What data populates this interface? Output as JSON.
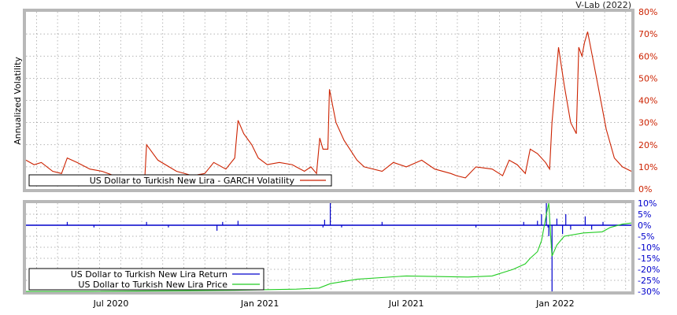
{
  "header": {
    "credit": "V-Lab (2022)"
  },
  "chart_data": [
    {
      "type": "line",
      "title": "",
      "ylabel": "Annualized Volatility",
      "ylim": [
        0,
        80
      ],
      "y_unit": "%",
      "y_ticks": [
        0,
        10,
        20,
        30,
        40,
        50,
        60,
        70,
        80
      ],
      "y_tick_labels": [
        "0%",
        "10%",
        "20%",
        "30%",
        "40%",
        "50%",
        "60%",
        "70%",
        "80%"
      ],
      "grid": true,
      "legend": "bottom-left",
      "x_range": [
        "2020-03-18",
        "2022-04-05"
      ],
      "series": [
        {
          "name": "US Dollar to Turkish New Lira - GARCH Volatility",
          "color": "#cc2200",
          "points": [
            [
              "2020-03-18",
              13
            ],
            [
              "2020-03-28",
              11
            ],
            [
              "2020-04-06",
              12
            ],
            [
              "2020-04-20",
              8
            ],
            [
              "2020-05-01",
              7
            ],
            [
              "2020-05-08",
              14
            ],
            [
              "2020-05-20",
              12
            ],
            [
              "2020-06-05",
              9
            ],
            [
              "2020-06-20",
              8
            ],
            [
              "2020-07-05",
              6
            ],
            [
              "2020-08-01",
              5
            ],
            [
              "2020-08-12",
              6
            ],
            [
              "2020-08-14",
              20
            ],
            [
              "2020-08-28",
              13
            ],
            [
              "2020-09-20",
              8
            ],
            [
              "2020-10-10",
              6
            ],
            [
              "2020-10-25",
              7
            ],
            [
              "2020-11-05",
              12
            ],
            [
              "2020-11-20",
              9
            ],
            [
              "2020-12-01",
              14
            ],
            [
              "2020-12-05",
              31
            ],
            [
              "2020-12-12",
              25
            ],
            [
              "2020-12-22",
              20
            ],
            [
              "2020-12-30",
              14
            ],
            [
              "2021-01-10",
              11
            ],
            [
              "2021-01-25",
              12
            ],
            [
              "2021-02-10",
              11
            ],
            [
              "2021-02-25",
              8
            ],
            [
              "2021-03-05",
              10
            ],
            [
              "2021-03-12",
              7
            ],
            [
              "2021-03-16",
              23
            ],
            [
              "2021-03-20",
              18
            ],
            [
              "2021-03-26",
              18
            ],
            [
              "2021-03-28",
              45
            ],
            [
              "2021-04-05",
              30
            ],
            [
              "2021-04-15",
              22
            ],
            [
              "2021-05-01",
              13
            ],
            [
              "2021-05-10",
              10
            ],
            [
              "2021-06-01",
              8
            ],
            [
              "2021-06-15",
              12
            ],
            [
              "2021-07-01",
              10
            ],
            [
              "2021-07-20",
              13
            ],
            [
              "2021-08-05",
              9
            ],
            [
              "2021-08-25",
              7
            ],
            [
              "2021-09-01",
              6
            ],
            [
              "2021-09-12",
              5
            ],
            [
              "2021-09-25",
              10
            ],
            [
              "2021-10-15",
              9
            ],
            [
              "2021-10-28",
              6
            ],
            [
              "2021-11-05",
              13
            ],
            [
              "2021-11-15",
              11
            ],
            [
              "2021-11-25",
              7
            ],
            [
              "2021-12-01",
              18
            ],
            [
              "2021-12-10",
              16
            ],
            [
              "2021-12-20",
              12
            ],
            [
              "2021-12-25",
              9
            ],
            [
              "2021-12-28",
              30
            ],
            [
              "2022-01-05",
              64
            ],
            [
              "2022-01-12",
              47
            ],
            [
              "2022-01-20",
              30
            ],
            [
              "2022-01-27",
              25
            ],
            [
              "2022-01-30",
              64
            ],
            [
              "2022-02-03",
              60
            ],
            [
              "2022-02-06",
              66
            ],
            [
              "2022-02-10",
              71
            ],
            [
              "2022-02-20",
              52
            ],
            [
              "2022-03-05",
              27
            ],
            [
              "2022-03-15",
              14
            ],
            [
              "2022-03-25",
              10
            ],
            [
              "2022-04-05",
              8
            ]
          ]
        }
      ]
    },
    {
      "type": "line",
      "title": "",
      "ylabel": "",
      "ylim": [
        -30,
        10
      ],
      "y_unit": "%",
      "y_ticks": [
        10,
        5,
        0,
        -5,
        -10,
        -15,
        -20,
        -25,
        -30
      ],
      "y_tick_labels": [
        "10%",
        "5%",
        "0%",
        "-5%",
        "-10%",
        "-15%",
        "-20%",
        "-25%",
        "-30%"
      ],
      "grid": true,
      "legend": "bottom-left",
      "x_range": [
        "2020-03-18",
        "2022-04-05"
      ],
      "x_ticks": [
        "2020-07-01",
        "2021-01-01",
        "2021-07-01",
        "2022-01-01"
      ],
      "x_tick_labels": [
        "Jul 2020",
        "Jan 2021",
        "Jul 2021",
        "Jan 2022"
      ],
      "series": [
        {
          "name": "US Dollar to Turkish New Lira Return",
          "color": "#0000cc",
          "baseline": 0,
          "spikes": [
            [
              "2020-05-08",
              1.5
            ],
            [
              "2020-06-10",
              -1.0
            ],
            [
              "2020-08-14",
              1.5
            ],
            [
              "2020-09-10",
              -1.0
            ],
            [
              "2020-11-09",
              -2.5
            ],
            [
              "2020-11-16",
              1.5
            ],
            [
              "2020-12-05",
              2.0
            ],
            [
              "2021-03-20",
              -1.0
            ],
            [
              "2021-03-22",
              2.5
            ],
            [
              "2021-03-29",
              10.0
            ],
            [
              "2021-04-12",
              -1.0
            ],
            [
              "2021-06-01",
              1.5
            ],
            [
              "2021-09-25",
              -1.0
            ],
            [
              "2021-11-23",
              1.5
            ],
            [
              "2021-12-10",
              2.0
            ],
            [
              "2021-12-15",
              5.0
            ],
            [
              "2021-12-21",
              13.0
            ],
            [
              "2021-12-23",
              -1.0
            ],
            [
              "2021-12-24",
              -5.0
            ],
            [
              "2021-12-28",
              -32.0
            ],
            [
              "2022-01-03",
              3.0
            ],
            [
              "2022-01-10",
              -4.0
            ],
            [
              "2022-01-14",
              5.0
            ],
            [
              "2022-01-20",
              -2.0
            ],
            [
              "2022-02-07",
              4.0
            ],
            [
              "2022-02-15",
              -2.0
            ],
            [
              "2022-03-01",
              1.5
            ]
          ]
        },
        {
          "name": "US Dollar to Turkish New Lira Price",
          "color": "#22cc22",
          "points": [
            [
              "2020-03-18",
              -30
            ],
            [
              "2020-06-01",
              -30
            ],
            [
              "2020-12-01",
              -29.5
            ],
            [
              "2021-02-15",
              -29
            ],
            [
              "2021-03-15",
              -28.5
            ],
            [
              "2021-03-29",
              -26.5
            ],
            [
              "2021-05-01",
              -24.5
            ],
            [
              "2021-07-01",
              -23
            ],
            [
              "2021-09-15",
              -23.5
            ],
            [
              "2021-10-15",
              -23
            ],
            [
              "2021-11-10",
              -20
            ],
            [
              "2021-11-25",
              -17.5
            ],
            [
              "2021-12-01",
              -15
            ],
            [
              "2021-12-10",
              -12
            ],
            [
              "2021-12-15",
              -7
            ],
            [
              "2021-12-21",
              5
            ],
            [
              "2021-12-24",
              10
            ],
            [
              "2021-12-26",
              -3
            ],
            [
              "2021-12-28",
              -14
            ],
            [
              "2022-01-03",
              -9
            ],
            [
              "2022-01-12",
              -5
            ],
            [
              "2022-02-05",
              -3.5
            ],
            [
              "2022-02-28",
              -3
            ],
            [
              "2022-03-10",
              -1
            ],
            [
              "2022-03-25",
              0.5
            ],
            [
              "2022-04-05",
              1
            ]
          ]
        }
      ]
    }
  ]
}
